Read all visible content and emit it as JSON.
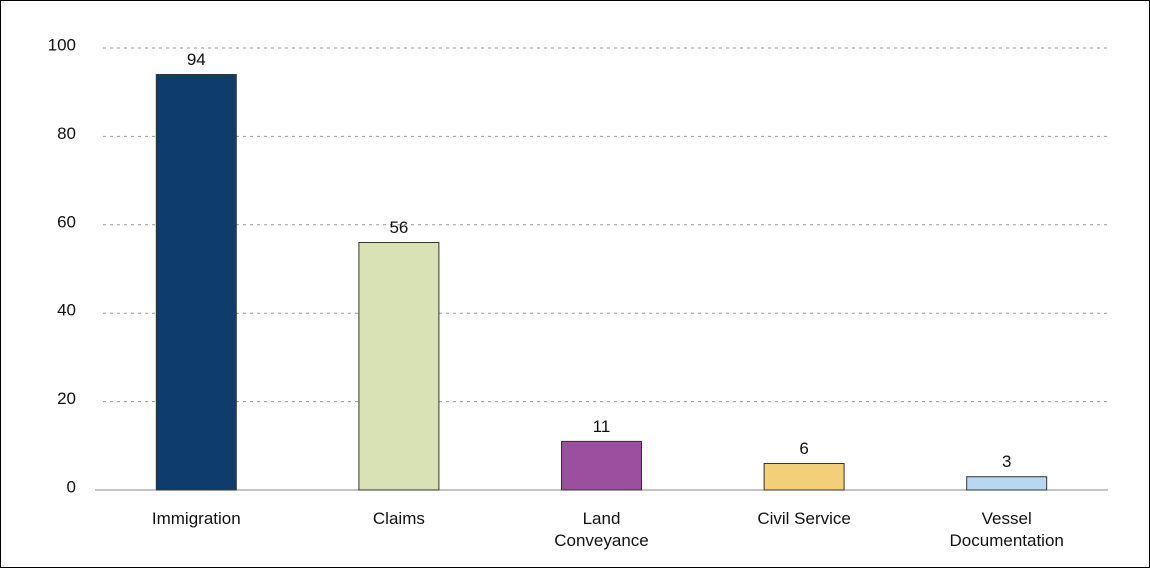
{
  "chart_data": {
    "type": "bar",
    "categories": [
      "Immigration",
      "Claims",
      "Land Conveyance",
      "Civil Service",
      "Vessel Documentation"
    ],
    "values": [
      94,
      56,
      11,
      6,
      3
    ],
    "colors": [
      "#0f3d6b",
      "#d8e2b4",
      "#9b4f9e",
      "#f4cf7a",
      "#b9d8f0"
    ],
    "ylim": [
      0,
      100
    ],
    "yticks": [
      0,
      20,
      40,
      60,
      80,
      100
    ],
    "grid": true
  }
}
